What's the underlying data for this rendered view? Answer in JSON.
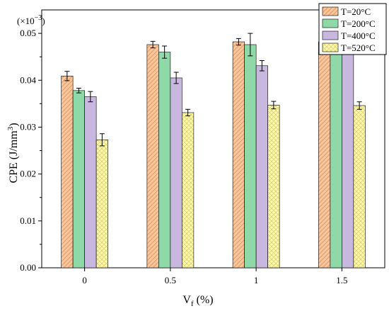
{
  "chart_data": {
    "type": "bar",
    "xlabel": "V",
    "xlabel_sub": "f",
    "xlabel_unit": " (%)",
    "ylabel": "CPE (J/mm",
    "ylabel_sup": "3",
    "ylabel_close": ")",
    "multiplier_prefix": "(×10",
    "multiplier_exp": "−3",
    "multiplier_suffix": ")",
    "categories": [
      "0",
      "0.5",
      "1",
      "1.5"
    ],
    "ylim": [
      0,
      0.055
    ],
    "yticks": [
      "0.00",
      "0.01",
      "0.02",
      "0.03",
      "0.04",
      "0.05"
    ],
    "legend_position": "top-right",
    "series": [
      {
        "name": "T=20°C",
        "color": "#f9c59a",
        "pattern": "diagonal",
        "values": [
          0.0409,
          0.0476,
          0.0482,
          0.0482
        ],
        "errors": [
          0.001,
          0.0007,
          0.0007,
          0.0008
        ]
      },
      {
        "name": "T=200°C",
        "color": "#8fd9a8",
        "pattern": "solid",
        "values": [
          0.0378,
          0.046,
          0.0476,
          0.0479
        ],
        "errors": [
          0.0005,
          0.0013,
          0.0024,
          0.0017
        ]
      },
      {
        "name": "T=400°C",
        "color": "#c8b8e0",
        "pattern": "solid",
        "values": [
          0.0365,
          0.0405,
          0.0431,
          0.0474
        ],
        "errors": [
          0.0011,
          0.0012,
          0.0011,
          0.0009
        ]
      },
      {
        "name": "T=520°C",
        "color": "#fdf8a6",
        "pattern": "crosshatch",
        "values": [
          0.0273,
          0.0331,
          0.0347,
          0.0346
        ],
        "errors": [
          0.0013,
          0.0007,
          0.0008,
          0.0008
        ]
      }
    ]
  }
}
